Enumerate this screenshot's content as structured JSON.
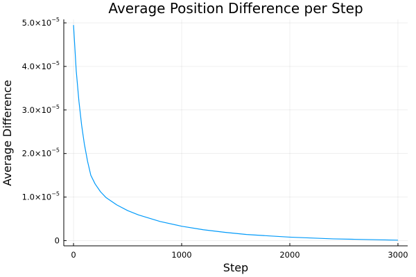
{
  "chart_data": {
    "type": "line",
    "title": "Average Position Difference per Step",
    "xlabel": "Step",
    "ylabel": "Average Difference",
    "xlim": [
      -90,
      3090
    ],
    "ylim": [
      -1.2e-06,
      5.08e-05
    ],
    "x_ticks": [
      {
        "value": 0,
        "label": "0"
      },
      {
        "value": 1000,
        "label": "1000"
      },
      {
        "value": 2000,
        "label": "2000"
      },
      {
        "value": 3000,
        "label": "3000"
      }
    ],
    "y_ticks": [
      {
        "value": 0,
        "mantissa": "0",
        "exponent": ""
      },
      {
        "value": 1e-05,
        "mantissa": "1.0×10",
        "exponent": "−5"
      },
      {
        "value": 2e-05,
        "mantissa": "2.0×10",
        "exponent": "−5"
      },
      {
        "value": 3e-05,
        "mantissa": "3.0×10",
        "exponent": "−5"
      },
      {
        "value": 4e-05,
        "mantissa": "4.0×10",
        "exponent": "−5"
      },
      {
        "value": 5e-05,
        "mantissa": "5.0×10",
        "exponent": "−5"
      }
    ],
    "grid": true,
    "legend": "none",
    "series": [
      {
        "color": "#009AFA",
        "x": [
          0,
          25,
          50,
          75,
          100,
          130,
          160,
          200,
          250,
          300,
          400,
          500,
          600,
          800,
          1000,
          1200,
          1400,
          1600,
          1800,
          2000,
          2200,
          2400,
          2600,
          2800,
          3000
        ],
        "y": [
          4.95e-05,
          3.9e-05,
          3.2e-05,
          2.65e-05,
          2.22e-05,
          1.82e-05,
          1.5e-05,
          1.3e-05,
          1.12e-05,
          9.9e-06,
          8.2e-06,
          6.9e-06,
          5.9e-06,
          4.4e-06,
          3.3e-06,
          2.5e-06,
          1.9e-06,
          1.4e-06,
          1.1e-06,
          8e-07,
          6e-07,
          4e-07,
          3e-07,
          2e-07,
          1e-07
        ]
      }
    ]
  }
}
